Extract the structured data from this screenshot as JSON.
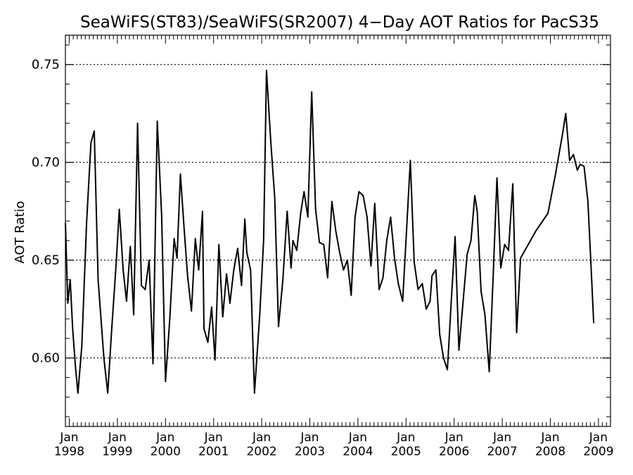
{
  "chart_data": {
    "type": "line",
    "title": "SeaWiFS(ST83)/SeaWiFS(SR2007) 4−Day AOT Ratios for PacS35",
    "xlabel": "",
    "ylabel": "AOT Ratio",
    "xlim": [
      1997.92,
      2009.25
    ],
    "ylim": [
      0.565,
      0.765
    ],
    "yticks": [
      {
        "value": 0.6,
        "label": "0.60"
      },
      {
        "value": 0.65,
        "label": "0.65"
      },
      {
        "value": 0.7,
        "label": "0.70"
      },
      {
        "value": 0.75,
        "label": "0.75"
      }
    ],
    "xticks": [
      {
        "value": 1998,
        "month": "Jan",
        "year": "1998"
      },
      {
        "value": 1999,
        "month": "Jan",
        "year": "1999"
      },
      {
        "value": 2000,
        "month": "Jan",
        "year": "2000"
      },
      {
        "value": 2001,
        "month": "Jan",
        "year": "2001"
      },
      {
        "value": 2002,
        "month": "Jan",
        "year": "2002"
      },
      {
        "value": 2003,
        "month": "Jan",
        "year": "2003"
      },
      {
        "value": 2004,
        "month": "Jan",
        "year": "2004"
      },
      {
        "value": 2005,
        "month": "Jan",
        "year": "2005"
      },
      {
        "value": 2006,
        "month": "Jan",
        "year": "2006"
      },
      {
        "value": 2007,
        "month": "Jan",
        "year": "2007"
      },
      {
        "value": 2008,
        "month": "Jan",
        "year": "2008"
      },
      {
        "value": 2009,
        "month": "Jan",
        "year": "2009"
      }
    ],
    "grid": "horizontal dotted at major y ticks",
    "series": [
      {
        "color": "#000000",
        "points": [
          [
            1997.92,
            0.669
          ],
          [
            1997.97,
            0.628
          ],
          [
            1998.02,
            0.64
          ],
          [
            1998.07,
            0.615
          ],
          [
            1998.13,
            0.595
          ],
          [
            1998.18,
            0.582
          ],
          [
            1998.26,
            0.606
          ],
          [
            1998.36,
            0.669
          ],
          [
            1998.45,
            0.71
          ],
          [
            1998.52,
            0.716
          ],
          [
            1998.6,
            0.64
          ],
          [
            1998.72,
            0.6
          ],
          [
            1998.8,
            0.582
          ],
          [
            1998.88,
            0.614
          ],
          [
            1998.98,
            0.65
          ],
          [
            1999.04,
            0.676
          ],
          [
            1999.12,
            0.645
          ],
          [
            1999.19,
            0.629
          ],
          [
            1999.27,
            0.657
          ],
          [
            1999.34,
            0.622
          ],
          [
            1999.42,
            0.72
          ],
          [
            1999.5,
            0.637
          ],
          [
            1999.58,
            0.635
          ],
          [
            1999.66,
            0.65
          ],
          [
            1999.74,
            0.597
          ],
          [
            1999.83,
            0.721
          ],
          [
            1999.92,
            0.673
          ],
          [
            2000.0,
            0.588
          ],
          [
            2000.09,
            0.62
          ],
          [
            2000.18,
            0.661
          ],
          [
            2000.24,
            0.651
          ],
          [
            2000.31,
            0.694
          ],
          [
            2000.39,
            0.665
          ],
          [
            2000.46,
            0.642
          ],
          [
            2000.54,
            0.624
          ],
          [
            2000.62,
            0.661
          ],
          [
            2000.69,
            0.645
          ],
          [
            2000.77,
            0.675
          ],
          [
            2000.8,
            0.615
          ],
          [
            2000.88,
            0.608
          ],
          [
            2000.96,
            0.626
          ],
          [
            2001.03,
            0.599
          ],
          [
            2001.11,
            0.658
          ],
          [
            2001.19,
            0.621
          ],
          [
            2001.27,
            0.643
          ],
          [
            2001.34,
            0.628
          ],
          [
            2001.42,
            0.645
          ],
          [
            2001.5,
            0.656
          ],
          [
            2001.58,
            0.637
          ],
          [
            2001.65,
            0.671
          ],
          [
            2001.69,
            0.654
          ],
          [
            2001.77,
            0.645
          ],
          [
            2001.85,
            0.582
          ],
          [
            2001.96,
            0.622
          ],
          [
            2002.04,
            0.66
          ],
          [
            2002.1,
            0.747
          ],
          [
            2002.19,
            0.71
          ],
          [
            2002.27,
            0.682
          ],
          [
            2002.35,
            0.616
          ],
          [
            2002.44,
            0.64
          ],
          [
            2002.53,
            0.675
          ],
          [
            2002.61,
            0.646
          ],
          [
            2002.65,
            0.66
          ],
          [
            2002.73,
            0.655
          ],
          [
            2002.81,
            0.674
          ],
          [
            2002.88,
            0.685
          ],
          [
            2002.96,
            0.672
          ],
          [
            2003.04,
            0.736
          ],
          [
            2003.12,
            0.676
          ],
          [
            2003.2,
            0.659
          ],
          [
            2003.29,
            0.658
          ],
          [
            2003.37,
            0.641
          ],
          [
            2003.46,
            0.68
          ],
          [
            2003.54,
            0.665
          ],
          [
            2003.62,
            0.654
          ],
          [
            2003.7,
            0.645
          ],
          [
            2003.78,
            0.65
          ],
          [
            2003.86,
            0.632
          ],
          [
            2003.94,
            0.672
          ],
          [
            2004.02,
            0.685
          ],
          [
            2004.11,
            0.683
          ],
          [
            2004.19,
            0.672
          ],
          [
            2004.27,
            0.647
          ],
          [
            2004.35,
            0.679
          ],
          [
            2004.44,
            0.635
          ],
          [
            2004.52,
            0.641
          ],
          [
            2004.6,
            0.66
          ],
          [
            2004.68,
            0.672
          ],
          [
            2004.76,
            0.651
          ],
          [
            2004.84,
            0.638
          ],
          [
            2004.93,
            0.629
          ],
          [
            2005.01,
            0.665
          ],
          [
            2005.09,
            0.701
          ],
          [
            2005.17,
            0.649
          ],
          [
            2005.25,
            0.635
          ],
          [
            2005.34,
            0.638
          ],
          [
            2005.42,
            0.625
          ],
          [
            2005.5,
            0.629
          ],
          [
            2005.54,
            0.642
          ],
          [
            2005.62,
            0.645
          ],
          [
            2005.7,
            0.612
          ],
          [
            2005.78,
            0.6
          ],
          [
            2005.86,
            0.594
          ],
          [
            2005.94,
            0.629
          ],
          [
            2006.02,
            0.662
          ],
          [
            2006.1,
            0.604
          ],
          [
            2006.19,
            0.63
          ],
          [
            2006.27,
            0.653
          ],
          [
            2006.35,
            0.66
          ],
          [
            2006.43,
            0.683
          ],
          [
            2006.48,
            0.675
          ],
          [
            2006.56,
            0.634
          ],
          [
            2006.64,
            0.622
          ],
          [
            2006.73,
            0.593
          ],
          [
            2006.81,
            0.641
          ],
          [
            2006.89,
            0.692
          ],
          [
            2006.97,
            0.646
          ],
          [
            2007.05,
            0.658
          ],
          [
            2007.13,
            0.655
          ],
          [
            2007.22,
            0.689
          ],
          [
            2007.3,
            0.613
          ],
          [
            2007.38,
            0.651
          ],
          [
            2007.7,
            0.665
          ],
          [
            2007.95,
            0.674
          ],
          [
            2008.1,
            0.693
          ],
          [
            2008.25,
            0.714
          ],
          [
            2008.32,
            0.725
          ],
          [
            2008.4,
            0.701
          ],
          [
            2008.48,
            0.704
          ],
          [
            2008.56,
            0.696
          ],
          [
            2008.62,
            0.699
          ],
          [
            2008.7,
            0.698
          ],
          [
            2008.78,
            0.68
          ],
          [
            2008.85,
            0.645
          ],
          [
            2008.9,
            0.618
          ]
        ]
      }
    ]
  }
}
